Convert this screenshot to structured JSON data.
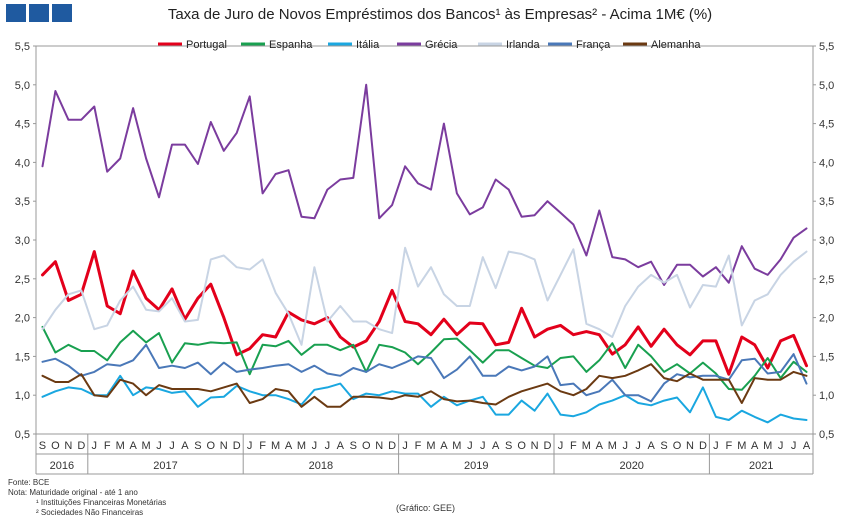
{
  "title": "Taxa de Juro de Novos Empréstimos dos Bancos¹ às Empresas² - Acima 1M€ (%)",
  "footnotes": {
    "source": "Fonte: BCE",
    "note": "Nota: Maturidade original - até 1 ano",
    "note1": "¹ Instituições Financeiras Monetárias",
    "note2": "² Sociedades Não Financeiras"
  },
  "credit": "(Gráfico: GEE)",
  "chart_data": {
    "type": "line",
    "title": "Taxa de Juro de Novos Empréstimos dos Bancos¹ às Empresas² - Acima 1M€ (%)",
    "ylim": [
      0.5,
      5.5
    ],
    "yticks": [
      "0,5",
      "1,0",
      "1,5",
      "2,0",
      "2,5",
      "3,0",
      "3,5",
      "4,0",
      "4,5",
      "5,0",
      "5,5"
    ],
    "month_labels": [
      "S",
      "O",
      "N",
      "D",
      "J",
      "F",
      "M",
      "A",
      "M",
      "J",
      "J",
      "A",
      "S",
      "O",
      "N",
      "D",
      "J",
      "F",
      "M",
      "A",
      "M",
      "J",
      "J",
      "A",
      "S",
      "O",
      "N",
      "D",
      "J",
      "F",
      "M",
      "A",
      "M",
      "J",
      "J",
      "A",
      "S",
      "O",
      "N",
      "D",
      "J",
      "F",
      "M",
      "A",
      "M",
      "J",
      "J",
      "A",
      "S",
      "O",
      "N",
      "D",
      "J",
      "F",
      "M",
      "A",
      "M",
      "J",
      "J",
      "A"
    ],
    "years": [
      {
        "label": "2016",
        "start": 0,
        "count": 4
      },
      {
        "label": "2017",
        "start": 4,
        "count": 12
      },
      {
        "label": "2018",
        "start": 16,
        "count": 12
      },
      {
        "label": "2019",
        "start": 28,
        "count": 12
      },
      {
        "label": "2020",
        "start": 40,
        "count": 12
      },
      {
        "label": "2021",
        "start": 52,
        "count": 8
      }
    ],
    "grid": false,
    "legend_position": "top",
    "series": [
      {
        "name": "Portugal",
        "color": "#e3001b",
        "width": 3,
        "values": [
          2.55,
          2.72,
          2.22,
          2.3,
          2.85,
          2.15,
          2.05,
          2.6,
          2.25,
          2.1,
          2.37,
          1.98,
          2.25,
          2.43,
          2.0,
          1.52,
          1.6,
          1.78,
          1.75,
          2.07,
          1.97,
          1.92,
          2.0,
          1.75,
          1.62,
          1.7,
          1.95,
          2.35,
          1.95,
          1.92,
          1.78,
          1.98,
          1.78,
          1.93,
          1.92,
          1.65,
          1.68,
          2.12,
          1.75,
          1.85,
          1.9,
          1.78,
          1.82,
          1.78,
          1.53,
          1.65,
          1.88,
          1.63,
          1.85,
          1.65,
          1.52,
          1.7,
          1.7,
          1.27,
          1.75,
          1.65,
          1.35,
          1.7,
          1.77,
          1.38
        ]
      },
      {
        "name": "Espanha",
        "color": "#19a050",
        "width": 2,
        "values": [
          1.88,
          1.55,
          1.65,
          1.57,
          1.57,
          1.45,
          1.68,
          1.83,
          1.68,
          1.8,
          1.42,
          1.67,
          1.65,
          1.68,
          1.67,
          1.68,
          1.27,
          1.65,
          1.63,
          1.7,
          1.52,
          1.65,
          1.65,
          1.58,
          1.65,
          1.3,
          1.65,
          1.62,
          1.55,
          1.4,
          1.55,
          1.72,
          1.73,
          1.58,
          1.42,
          1.58,
          1.58,
          1.48,
          1.38,
          1.35,
          1.48,
          1.5,
          1.3,
          1.45,
          1.67,
          1.35,
          1.65,
          1.5,
          1.3,
          1.4,
          1.28,
          1.42,
          1.28,
          1.08,
          1.07,
          1.25,
          1.48,
          1.22,
          1.43,
          1.3
        ]
      },
      {
        "name": "Itália",
        "color": "#1aa7e0",
        "width": 2,
        "values": [
          0.98,
          1.05,
          1.1,
          1.08,
          1.0,
          1.0,
          1.25,
          1.0,
          1.1,
          1.08,
          1.03,
          1.05,
          0.85,
          0.97,
          0.98,
          1.12,
          1.05,
          1.0,
          1.0,
          0.95,
          0.88,
          1.07,
          1.1,
          1.15,
          0.95,
          1.02,
          1.0,
          1.05,
          1.02,
          1.02,
          0.85,
          0.98,
          0.87,
          0.93,
          0.98,
          0.75,
          0.75,
          0.93,
          0.8,
          1.02,
          0.75,
          0.73,
          0.78,
          0.88,
          0.93,
          1.0,
          0.9,
          0.87,
          0.93,
          0.97,
          0.78,
          1.1,
          0.72,
          0.68,
          0.8,
          0.72,
          0.65,
          0.75,
          0.7,
          0.68
        ]
      },
      {
        "name": "Grécia",
        "color": "#7b3c9e",
        "width": 2,
        "values": [
          3.95,
          4.92,
          4.55,
          4.55,
          4.72,
          3.88,
          4.05,
          4.7,
          4.05,
          3.55,
          4.23,
          4.23,
          3.98,
          4.52,
          4.15,
          4.38,
          4.85,
          3.6,
          3.85,
          3.9,
          3.3,
          3.28,
          3.65,
          3.78,
          3.8,
          5.0,
          3.28,
          3.45,
          3.95,
          3.73,
          3.65,
          4.5,
          3.6,
          3.33,
          3.42,
          3.78,
          3.65,
          3.3,
          3.32,
          3.5,
          3.35,
          3.2,
          2.8,
          3.38,
          2.78,
          2.75,
          2.65,
          2.72,
          2.42,
          2.68,
          2.68,
          2.53,
          2.65,
          2.45,
          2.92,
          2.63,
          2.55,
          2.75,
          3.03,
          3.15
        ]
      },
      {
        "name": "Irlanda",
        "color": "#c8d4e4",
        "width": 2,
        "values": [
          1.85,
          2.1,
          2.3,
          2.35,
          1.85,
          1.9,
          2.22,
          2.4,
          2.1,
          2.08,
          2.25,
          1.95,
          1.97,
          2.75,
          2.8,
          2.65,
          2.62,
          2.75,
          2.32,
          2.05,
          1.65,
          2.65,
          1.95,
          2.15,
          1.95,
          1.95,
          1.85,
          1.8,
          2.9,
          2.4,
          2.65,
          2.3,
          2.15,
          2.15,
          2.78,
          2.38,
          2.85,
          2.82,
          2.75,
          2.22,
          2.55,
          2.88,
          1.92,
          1.85,
          1.75,
          2.15,
          2.4,
          2.55,
          2.45,
          2.55,
          2.13,
          2.42,
          2.4,
          2.8,
          1.9,
          2.22,
          2.3,
          2.55,
          2.72,
          2.85
        ]
      },
      {
        "name": "França",
        "color": "#4a78b8",
        "width": 2,
        "values": [
          1.43,
          1.47,
          1.38,
          1.25,
          1.3,
          1.4,
          1.38,
          1.45,
          1.65,
          1.35,
          1.38,
          1.35,
          1.42,
          1.27,
          1.42,
          1.3,
          1.33,
          1.35,
          1.38,
          1.4,
          1.3,
          1.38,
          1.28,
          1.25,
          1.35,
          1.3,
          1.4,
          1.35,
          1.42,
          1.5,
          1.48,
          1.22,
          1.33,
          1.5,
          1.25,
          1.25,
          1.37,
          1.32,
          1.37,
          1.5,
          1.13,
          1.15,
          1.0,
          1.05,
          1.2,
          1.0,
          1.0,
          0.92,
          1.15,
          1.27,
          1.23,
          1.25,
          1.25,
          1.2,
          1.45,
          1.47,
          1.28,
          1.3,
          1.53,
          1.15
        ]
      },
      {
        "name": "Alemanha",
        "color": "#6b3a12",
        "width": 2,
        "values": [
          1.25,
          1.17,
          1.17,
          1.27,
          1.0,
          0.98,
          1.2,
          1.15,
          1.0,
          1.13,
          1.08,
          1.08,
          1.08,
          1.05,
          1.1,
          1.15,
          0.9,
          0.95,
          1.08,
          1.05,
          0.85,
          0.98,
          0.85,
          0.85,
          0.98,
          0.98,
          0.97,
          0.95,
          1.0,
          0.98,
          1.05,
          0.95,
          0.92,
          0.93,
          0.9,
          0.88,
          0.98,
          1.05,
          1.1,
          1.15,
          1.05,
          1.0,
          1.08,
          1.25,
          1.22,
          1.25,
          1.32,
          1.4,
          1.22,
          1.18,
          1.28,
          1.2,
          1.2,
          1.2,
          0.9,
          1.22,
          1.2,
          1.2,
          1.3,
          1.25
        ]
      }
    ]
  }
}
